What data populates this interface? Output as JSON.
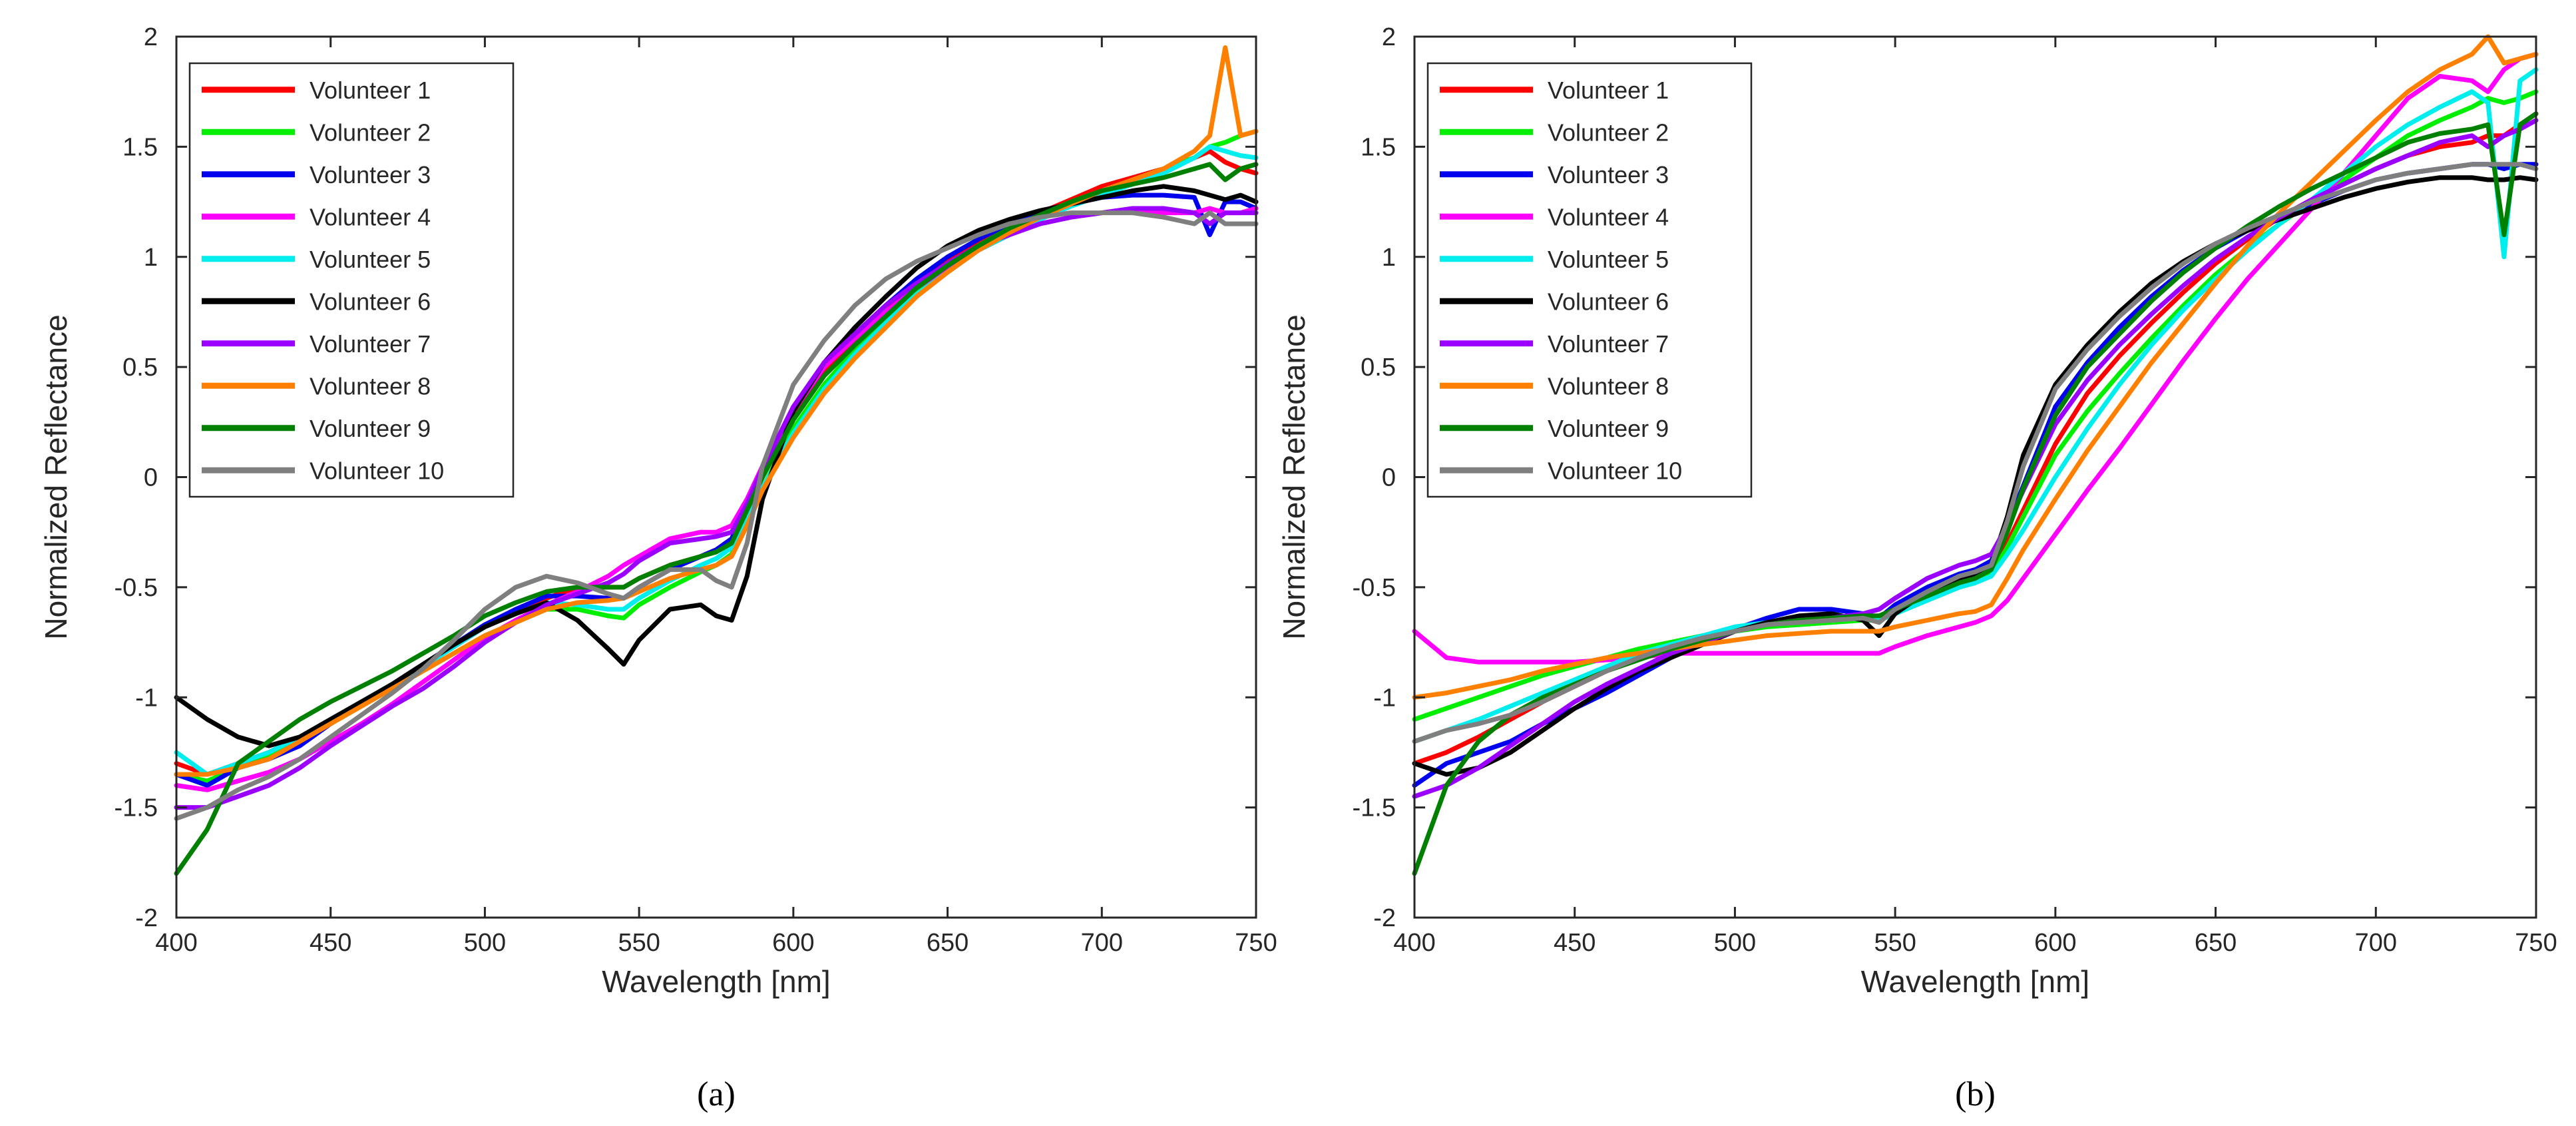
{
  "chart_data": [
    {
      "type": "line",
      "caption": "(a)",
      "xlabel": "Wavelength [nm]",
      "ylabel": "Normalized Reflectance",
      "xlim": [
        400,
        750
      ],
      "ylim": [
        -2,
        2
      ],
      "xticks": [
        400,
        450,
        500,
        550,
        600,
        650,
        700,
        750
      ],
      "yticks": [
        -2,
        -1.5,
        -1,
        -0.5,
        0,
        0.5,
        1,
        1.5,
        2
      ],
      "legend_position": "top-left",
      "x": [
        400,
        410,
        420,
        430,
        440,
        450,
        460,
        470,
        480,
        490,
        500,
        510,
        520,
        530,
        540,
        545,
        550,
        560,
        570,
        575,
        580,
        585,
        590,
        600,
        610,
        620,
        630,
        640,
        650,
        660,
        670,
        680,
        690,
        700,
        710,
        720,
        730,
        735,
        740,
        745,
        750
      ],
      "series": [
        {
          "name": "Volunteer 1",
          "color": "#ff0000",
          "values": [
            -1.3,
            -1.35,
            -1.3,
            -1.25,
            -1.18,
            -1.1,
            -1.02,
            -0.95,
            -0.86,
            -0.77,
            -0.68,
            -0.62,
            -0.55,
            -0.5,
            -0.5,
            -0.5,
            -0.46,
            -0.4,
            -0.36,
            -0.33,
            -0.28,
            -0.15,
            0.0,
            0.28,
            0.48,
            0.62,
            0.75,
            0.88,
            0.98,
            1.07,
            1.14,
            1.2,
            1.26,
            1.32,
            1.36,
            1.4,
            1.45,
            1.48,
            1.43,
            1.4,
            1.38
          ]
        },
        {
          "name": "Volunteer 2",
          "color": "#00ee00",
          "values": [
            -1.35,
            -1.38,
            -1.32,
            -1.27,
            -1.2,
            -1.12,
            -1.04,
            -0.96,
            -0.88,
            -0.8,
            -0.72,
            -0.66,
            -0.6,
            -0.6,
            -0.63,
            -0.64,
            -0.58,
            -0.5,
            -0.43,
            -0.4,
            -0.35,
            -0.2,
            -0.05,
            0.22,
            0.42,
            0.58,
            0.72,
            0.85,
            0.95,
            1.05,
            1.13,
            1.19,
            1.25,
            1.3,
            1.35,
            1.4,
            1.45,
            1.5,
            1.52,
            1.55,
            1.57
          ]
        },
        {
          "name": "Volunteer 3",
          "color": "#0000ee",
          "values": [
            -1.35,
            -1.4,
            -1.32,
            -1.28,
            -1.22,
            -1.12,
            -1.03,
            -0.94,
            -0.85,
            -0.76,
            -0.67,
            -0.6,
            -0.54,
            -0.54,
            -0.55,
            -0.55,
            -0.5,
            -0.42,
            -0.36,
            -0.33,
            -0.28,
            -0.12,
            0.02,
            0.3,
            0.5,
            0.65,
            0.78,
            0.9,
            1.0,
            1.08,
            1.15,
            1.2,
            1.24,
            1.27,
            1.28,
            1.28,
            1.27,
            1.1,
            1.25,
            1.25,
            1.22
          ]
        },
        {
          "name": "Volunteer 4",
          "color": "#ff00ff",
          "values": [
            -1.4,
            -1.42,
            -1.38,
            -1.34,
            -1.28,
            -1.2,
            -1.12,
            -1.03,
            -0.93,
            -0.83,
            -0.73,
            -0.65,
            -0.58,
            -0.52,
            -0.45,
            -0.4,
            -0.36,
            -0.28,
            -0.25,
            -0.25,
            -0.22,
            -0.1,
            0.05,
            0.3,
            0.5,
            0.63,
            0.75,
            0.86,
            0.95,
            1.03,
            1.1,
            1.15,
            1.18,
            1.2,
            1.21,
            1.2,
            1.2,
            1.22,
            1.2,
            1.2,
            1.22
          ]
        },
        {
          "name": "Volunteer 5",
          "color": "#00eeee",
          "values": [
            -1.25,
            -1.35,
            -1.3,
            -1.25,
            -1.18,
            -1.1,
            -1.02,
            -0.94,
            -0.86,
            -0.77,
            -0.68,
            -0.62,
            -0.57,
            -0.58,
            -0.6,
            -0.6,
            -0.55,
            -0.47,
            -0.4,
            -0.37,
            -0.32,
            -0.18,
            -0.05,
            0.2,
            0.4,
            0.56,
            0.7,
            0.83,
            0.93,
            1.03,
            1.1,
            1.17,
            1.23,
            1.28,
            1.33,
            1.38,
            1.45,
            1.5,
            1.48,
            1.46,
            1.45
          ]
        },
        {
          "name": "Volunteer 6",
          "color": "#000000",
          "values": [
            -1.0,
            -1.1,
            -1.18,
            -1.22,
            -1.18,
            -1.1,
            -1.02,
            -0.94,
            -0.85,
            -0.76,
            -0.68,
            -0.62,
            -0.57,
            -0.65,
            -0.78,
            -0.85,
            -0.74,
            -0.6,
            -0.58,
            -0.63,
            -0.65,
            -0.45,
            -0.1,
            0.3,
            0.52,
            0.68,
            0.82,
            0.95,
            1.05,
            1.12,
            1.17,
            1.21,
            1.24,
            1.27,
            1.3,
            1.32,
            1.3,
            1.28,
            1.26,
            1.28,
            1.25
          ]
        },
        {
          "name": "Volunteer 7",
          "color": "#9b00ff",
          "values": [
            -1.5,
            -1.5,
            -1.45,
            -1.4,
            -1.32,
            -1.22,
            -1.13,
            -1.04,
            -0.96,
            -0.86,
            -0.75,
            -0.66,
            -0.58,
            -0.53,
            -0.48,
            -0.44,
            -0.38,
            -0.3,
            -0.28,
            -0.27,
            -0.25,
            -0.12,
            0.04,
            0.32,
            0.52,
            0.65,
            0.78,
            0.88,
            0.97,
            1.05,
            1.1,
            1.15,
            1.18,
            1.2,
            1.22,
            1.22,
            1.2,
            1.15,
            1.2,
            1.2,
            1.2
          ]
        },
        {
          "name": "Volunteer 8",
          "color": "#ff8000",
          "values": [
            -1.35,
            -1.35,
            -1.32,
            -1.28,
            -1.2,
            -1.12,
            -1.04,
            -0.96,
            -0.88,
            -0.8,
            -0.72,
            -0.66,
            -0.6,
            -0.57,
            -0.56,
            -0.55,
            -0.52,
            -0.46,
            -0.42,
            -0.4,
            -0.36,
            -0.22,
            -0.06,
            0.18,
            0.38,
            0.54,
            0.68,
            0.82,
            0.93,
            1.03,
            1.11,
            1.18,
            1.24,
            1.3,
            1.35,
            1.4,
            1.48,
            1.55,
            1.95,
            1.55,
            1.57
          ]
        },
        {
          "name": "Volunteer 9",
          "color": "#008000",
          "values": [
            -1.8,
            -1.6,
            -1.3,
            -1.2,
            -1.1,
            -1.02,
            -0.95,
            -0.88,
            -0.8,
            -0.72,
            -0.63,
            -0.57,
            -0.52,
            -0.5,
            -0.5,
            -0.5,
            -0.46,
            -0.4,
            -0.36,
            -0.34,
            -0.3,
            -0.15,
            0.0,
            0.26,
            0.46,
            0.6,
            0.73,
            0.86,
            0.96,
            1.05,
            1.13,
            1.19,
            1.25,
            1.3,
            1.33,
            1.36,
            1.4,
            1.42,
            1.35,
            1.4,
            1.42
          ]
        },
        {
          "name": "Volunteer 10",
          "color": "#7f7f7f",
          "values": [
            -1.55,
            -1.5,
            -1.42,
            -1.36,
            -1.28,
            -1.18,
            -1.08,
            -0.98,
            -0.87,
            -0.74,
            -0.6,
            -0.5,
            -0.45,
            -0.48,
            -0.53,
            -0.55,
            -0.5,
            -0.42,
            -0.42,
            -0.47,
            -0.5,
            -0.3,
            0.05,
            0.42,
            0.62,
            0.78,
            0.9,
            0.98,
            1.04,
            1.1,
            1.15,
            1.18,
            1.2,
            1.2,
            1.2,
            1.18,
            1.15,
            1.2,
            1.15,
            1.15,
            1.15
          ]
        }
      ]
    },
    {
      "type": "line",
      "caption": "(b)",
      "xlabel": "Wavelength [nm]",
      "ylabel": "Normalized Reflectance",
      "xlim": [
        400,
        750
      ],
      "ylim": [
        -2,
        2
      ],
      "xticks": [
        400,
        450,
        500,
        550,
        600,
        650,
        700,
        750
      ],
      "yticks": [
        -2,
        -1.5,
        -1,
        -0.5,
        0,
        0.5,
        1,
        1.5,
        2
      ],
      "legend_position": "top-left",
      "x": [
        400,
        410,
        420,
        430,
        440,
        450,
        460,
        470,
        480,
        490,
        500,
        510,
        520,
        530,
        540,
        545,
        550,
        560,
        570,
        575,
        580,
        585,
        590,
        600,
        610,
        620,
        630,
        640,
        650,
        660,
        670,
        680,
        690,
        700,
        710,
        720,
        730,
        735,
        740,
        745,
        750
      ],
      "series": [
        {
          "name": "Volunteer 1",
          "color": "#ff0000",
          "values": [
            -1.3,
            -1.25,
            -1.18,
            -1.1,
            -1.02,
            -0.95,
            -0.88,
            -0.82,
            -0.78,
            -0.74,
            -0.7,
            -0.67,
            -0.65,
            -0.64,
            -0.63,
            -0.63,
            -0.6,
            -0.53,
            -0.48,
            -0.46,
            -0.43,
            -0.3,
            -0.15,
            0.15,
            0.38,
            0.55,
            0.7,
            0.84,
            0.97,
            1.08,
            1.18,
            1.26,
            1.33,
            1.4,
            1.46,
            1.5,
            1.52,
            1.55,
            1.55,
            1.6,
            1.65
          ]
        },
        {
          "name": "Volunteer 2",
          "color": "#00ee00",
          "values": [
            -1.1,
            -1.05,
            -1.0,
            -0.95,
            -0.9,
            -0.86,
            -0.82,
            -0.78,
            -0.75,
            -0.72,
            -0.7,
            -0.68,
            -0.67,
            -0.66,
            -0.65,
            -0.65,
            -0.62,
            -0.56,
            -0.5,
            -0.48,
            -0.44,
            -0.32,
            -0.18,
            0.1,
            0.3,
            0.47,
            0.63,
            0.78,
            0.92,
            1.04,
            1.15,
            1.25,
            1.35,
            1.45,
            1.55,
            1.62,
            1.68,
            1.72,
            1.7,
            1.72,
            1.75
          ]
        },
        {
          "name": "Volunteer 3",
          "color": "#0000ee",
          "values": [
            -1.4,
            -1.3,
            -1.25,
            -1.2,
            -1.12,
            -1.05,
            -0.98,
            -0.9,
            -0.82,
            -0.75,
            -0.69,
            -0.64,
            -0.6,
            -0.6,
            -0.62,
            -0.64,
            -0.58,
            -0.5,
            -0.44,
            -0.42,
            -0.38,
            -0.22,
            -0.04,
            0.32,
            0.52,
            0.68,
            0.82,
            0.94,
            1.04,
            1.12,
            1.18,
            1.24,
            1.3,
            1.35,
            1.38,
            1.4,
            1.42,
            1.42,
            1.4,
            1.42,
            1.42
          ]
        },
        {
          "name": "Volunteer 4",
          "color": "#ff00ff",
          "values": [
            -0.7,
            -0.82,
            -0.84,
            -0.84,
            -0.84,
            -0.84,
            -0.83,
            -0.82,
            -0.8,
            -0.8,
            -0.8,
            -0.8,
            -0.8,
            -0.8,
            -0.8,
            -0.8,
            -0.77,
            -0.72,
            -0.68,
            -0.66,
            -0.63,
            -0.56,
            -0.46,
            -0.26,
            -0.06,
            0.13,
            0.33,
            0.53,
            0.72,
            0.9,
            1.06,
            1.22,
            1.38,
            1.55,
            1.72,
            1.82,
            1.8,
            1.75,
            1.85,
            1.9,
            1.92
          ]
        },
        {
          "name": "Volunteer 5",
          "color": "#00eeee",
          "values": [
            -1.2,
            -1.15,
            -1.1,
            -1.04,
            -0.98,
            -0.92,
            -0.86,
            -0.8,
            -0.76,
            -0.72,
            -0.68,
            -0.66,
            -0.65,
            -0.65,
            -0.64,
            -0.65,
            -0.62,
            -0.56,
            -0.5,
            -0.48,
            -0.45,
            -0.35,
            -0.24,
            0.0,
            0.22,
            0.42,
            0.6,
            0.76,
            0.9,
            1.03,
            1.15,
            1.26,
            1.38,
            1.5,
            1.6,
            1.68,
            1.75,
            1.7,
            1.0,
            1.8,
            1.85
          ]
        },
        {
          "name": "Volunteer 6",
          "color": "#000000",
          "values": [
            -1.3,
            -1.35,
            -1.32,
            -1.25,
            -1.15,
            -1.05,
            -0.96,
            -0.88,
            -0.82,
            -0.76,
            -0.7,
            -0.66,
            -0.63,
            -0.62,
            -0.65,
            -0.72,
            -0.62,
            -0.52,
            -0.46,
            -0.44,
            -0.4,
            -0.18,
            0.1,
            0.42,
            0.6,
            0.75,
            0.88,
            0.98,
            1.06,
            1.12,
            1.17,
            1.22,
            1.27,
            1.31,
            1.34,
            1.36,
            1.36,
            1.35,
            1.35,
            1.36,
            1.35
          ]
        },
        {
          "name": "Volunteer 7",
          "color": "#9b00ff",
          "values": [
            -1.45,
            -1.4,
            -1.32,
            -1.22,
            -1.12,
            -1.02,
            -0.94,
            -0.87,
            -0.8,
            -0.75,
            -0.7,
            -0.67,
            -0.65,
            -0.64,
            -0.62,
            -0.6,
            -0.55,
            -0.46,
            -0.4,
            -0.38,
            -0.35,
            -0.22,
            -0.06,
            0.24,
            0.44,
            0.6,
            0.74,
            0.87,
            0.99,
            1.09,
            1.18,
            1.26,
            1.33,
            1.4,
            1.46,
            1.52,
            1.55,
            1.5,
            1.55,
            1.58,
            1.62
          ]
        },
        {
          "name": "Volunteer 8",
          "color": "#ff8000",
          "values": [
            -1.0,
            -0.98,
            -0.95,
            -0.92,
            -0.88,
            -0.85,
            -0.82,
            -0.8,
            -0.78,
            -0.76,
            -0.74,
            -0.72,
            -0.71,
            -0.7,
            -0.7,
            -0.7,
            -0.68,
            -0.65,
            -0.62,
            -0.61,
            -0.58,
            -0.46,
            -0.33,
            -0.1,
            0.12,
            0.32,
            0.52,
            0.7,
            0.88,
            1.05,
            1.2,
            1.34,
            1.48,
            1.62,
            1.75,
            1.85,
            1.92,
            2.0,
            1.88,
            1.9,
            1.92
          ]
        },
        {
          "name": "Volunteer 9",
          "color": "#008000",
          "values": [
            -1.8,
            -1.4,
            -1.2,
            -1.08,
            -1.0,
            -0.94,
            -0.88,
            -0.83,
            -0.78,
            -0.74,
            -0.7,
            -0.67,
            -0.65,
            -0.64,
            -0.63,
            -0.63,
            -0.6,
            -0.54,
            -0.48,
            -0.46,
            -0.42,
            -0.25,
            -0.05,
            0.28,
            0.5,
            0.65,
            0.8,
            0.93,
            1.04,
            1.14,
            1.23,
            1.31,
            1.38,
            1.45,
            1.52,
            1.56,
            1.58,
            1.6,
            1.1,
            1.6,
            1.65
          ]
        },
        {
          "name": "Volunteer 10",
          "color": "#7f7f7f",
          "values": [
            -1.2,
            -1.15,
            -1.12,
            -1.08,
            -1.02,
            -0.95,
            -0.88,
            -0.82,
            -0.77,
            -0.73,
            -0.7,
            -0.67,
            -0.66,
            -0.65,
            -0.64,
            -0.66,
            -0.6,
            -0.52,
            -0.45,
            -0.43,
            -0.4,
            -0.2,
            0.05,
            0.4,
            0.58,
            0.73,
            0.86,
            0.97,
            1.06,
            1.13,
            1.19,
            1.25,
            1.3,
            1.35,
            1.38,
            1.4,
            1.42,
            1.42,
            1.42,
            1.42,
            1.4
          ]
        }
      ]
    }
  ]
}
